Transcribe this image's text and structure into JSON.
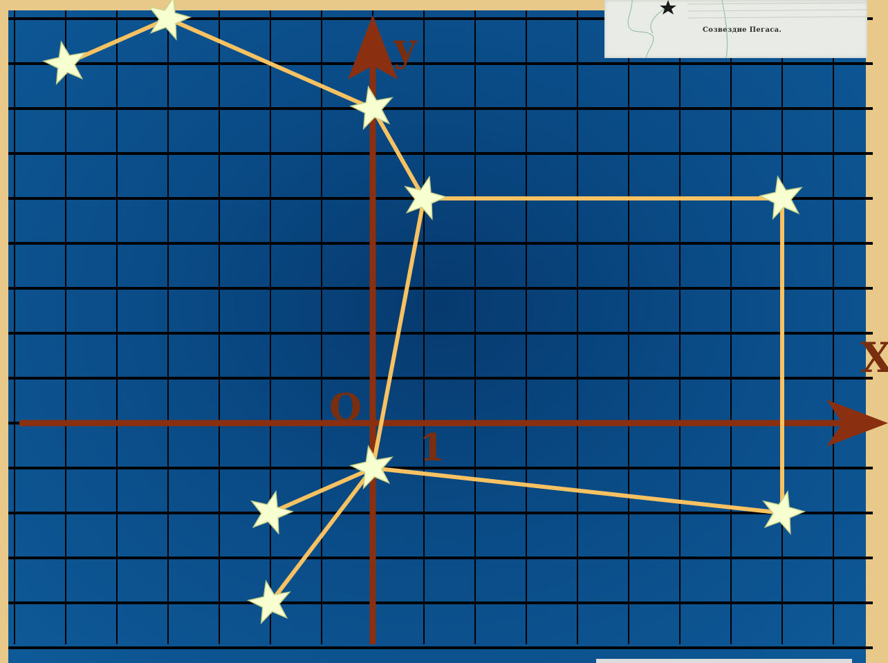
{
  "axes": {
    "x_label": "X",
    "y_label": "у",
    "origin_label": "О",
    "unit_label": "1"
  },
  "grid": {
    "x_range": [
      -7,
      10
    ],
    "y_range": [
      -5,
      9
    ],
    "grid_on": true
  },
  "colors": {
    "axis": "#8a3010",
    "axis_label": "#7a2e10",
    "line": "#f8c262",
    "star": "#f7ffd0",
    "star_stroke": "#c8d08a",
    "grid_line": "#000000"
  },
  "constellation": {
    "stars": [
      {
        "id": "s1",
        "x": -6,
        "y": 8
      },
      {
        "id": "s2",
        "x": -4,
        "y": 9
      },
      {
        "id": "s3",
        "x": 0,
        "y": 7
      },
      {
        "id": "s4",
        "x": 1,
        "y": 5
      },
      {
        "id": "s5",
        "x": 8,
        "y": 5
      },
      {
        "id": "s6",
        "x": 8,
        "y": -2
      },
      {
        "id": "s7",
        "x": 0,
        "y": -1
      },
      {
        "id": "s8",
        "x": -2,
        "y": -2
      },
      {
        "id": "s9",
        "x": -2,
        "y": -4
      }
    ],
    "edges": [
      [
        "s1",
        "s2"
      ],
      [
        "s2",
        "s3"
      ],
      [
        "s3",
        "s4"
      ],
      [
        "s4",
        "s5"
      ],
      [
        "s5",
        "s6"
      ],
      [
        "s6",
        "s7"
      ],
      [
        "s7",
        "s4"
      ],
      [
        "s7",
        "s8"
      ],
      [
        "s7",
        "s9"
      ]
    ]
  },
  "inset": {
    "caption": "Созвездие Пегаса."
  }
}
